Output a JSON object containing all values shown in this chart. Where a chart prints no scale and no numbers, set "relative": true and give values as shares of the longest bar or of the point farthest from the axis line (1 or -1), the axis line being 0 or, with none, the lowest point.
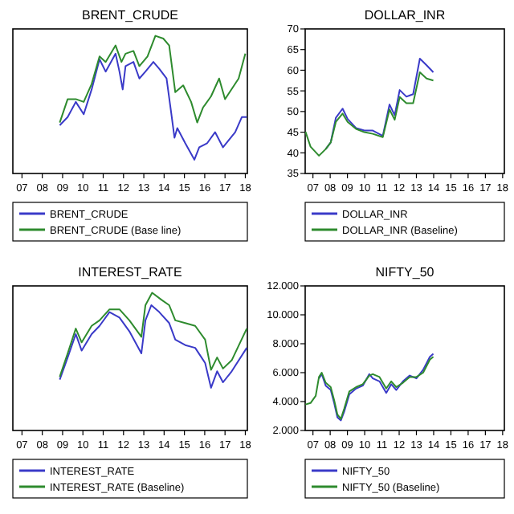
{
  "chart_data": [
    {
      "type": "line",
      "title": "BRENT_CRUDE",
      "relative": true,
      "legend": "bottom",
      "xlim": [
        2006.55,
        2018.1
      ],
      "xticks": [
        {
          "value": 2007,
          "label": "07"
        },
        {
          "value": 2008,
          "label": "08"
        },
        {
          "value": 2009,
          "label": "09"
        },
        {
          "value": 2010,
          "label": "10"
        },
        {
          "value": 2011,
          "label": "11"
        },
        {
          "value": 2012,
          "label": "12"
        },
        {
          "value": 2013,
          "label": "13"
        },
        {
          "value": 2014,
          "label": "14"
        },
        {
          "value": 2015,
          "label": "15"
        },
        {
          "value": 2016,
          "label": "16"
        },
        {
          "value": 2017,
          "label": "17"
        },
        {
          "value": 2018,
          "label": "18"
        }
      ],
      "series": [
        {
          "name": "BRENT_CRUDE",
          "color": "#3a3ac8",
          "x": [
            2008.86,
            2009.25,
            2009.65,
            2010.04,
            2010.43,
            2010.82,
            2011.12,
            2011.61,
            2011.8,
            2011.96,
            2012.1,
            2012.49,
            2012.78,
            2013.08,
            2013.47,
            2013.76,
            2014.12,
            2014.35,
            2014.51,
            2014.65,
            2015.04,
            2015.49,
            2015.73,
            2016.12,
            2016.51,
            2016.9,
            2017.5,
            2017.83,
            2018.07
          ],
          "values": [
            0.35,
            0.41,
            0.52,
            0.43,
            0.61,
            0.83,
            0.74,
            0.87,
            0.74,
            0.61,
            0.78,
            0.81,
            0.69,
            0.74,
            0.81,
            0.76,
            0.69,
            0.44,
            0.26,
            0.33,
            0.22,
            0.1,
            0.19,
            0.22,
            0.3,
            0.19,
            0.3,
            0.41,
            0.41
          ]
        },
        {
          "name": "BRENT_CRUDE (Base line)",
          "color": "#2e8b2e",
          "x": [
            2008.86,
            2009.25,
            2009.65,
            2010.04,
            2010.43,
            2010.82,
            2011.12,
            2011.61,
            2011.9,
            2012.1,
            2012.49,
            2012.78,
            2013.18,
            2013.57,
            2013.96,
            2014.25,
            2014.55,
            2014.94,
            2015.33,
            2015.63,
            2015.92,
            2016.31,
            2016.71,
            2017.0,
            2017.67,
            2018.0
          ],
          "values": [
            0.37,
            0.54,
            0.54,
            0.52,
            0.65,
            0.85,
            0.81,
            0.93,
            0.81,
            0.87,
            0.89,
            0.78,
            0.85,
            1.0,
            0.98,
            0.93,
            0.59,
            0.64,
            0.52,
            0.37,
            0.48,
            0.56,
            0.69,
            0.54,
            0.69,
            0.87
          ]
        }
      ]
    },
    {
      "type": "line",
      "title": "DOLLAR_INR",
      "legend": "bottom",
      "xlim": [
        2006.55,
        2018.1
      ],
      "xticks": [
        {
          "value": 2007,
          "label": "07"
        },
        {
          "value": 2008,
          "label": "08"
        },
        {
          "value": 2009,
          "label": "09"
        },
        {
          "value": 2010,
          "label": "10"
        },
        {
          "value": 2011,
          "label": "11"
        },
        {
          "value": 2012,
          "label": "12"
        },
        {
          "value": 2013,
          "label": "13"
        },
        {
          "value": 2014,
          "label": "14"
        },
        {
          "value": 2015,
          "label": "15"
        },
        {
          "value": 2016,
          "label": "16"
        },
        {
          "value": 2017,
          "label": "17"
        },
        {
          "value": 2018,
          "label": "18"
        }
      ],
      "ylim": [
        35,
        70
      ],
      "yticks": [
        35,
        40,
        45,
        50,
        55,
        60,
        65,
        70
      ],
      "series": [
        {
          "name": "DOLLAR_INR",
          "color": "#3a3ac8",
          "x": [
            2007.74,
            2008.03,
            2008.33,
            2008.72,
            2009.01,
            2009.5,
            2009.98,
            2010.47,
            2011.05,
            2011.44,
            2011.74,
            2012.03,
            2012.42,
            2012.81,
            2013.2,
            2013.59,
            2013.98
          ],
          "values": [
            40.9,
            42.5,
            48.5,
            50.7,
            48.2,
            46,
            45.4,
            45.4,
            44.1,
            51.7,
            49.1,
            55.2,
            53.6,
            54.2,
            62.8,
            61.2,
            59.5
          ]
        },
        {
          "name": "DOLLAR_INR (Baseline)",
          "color": "#2e8b2e",
          "x": [
            2006.57,
            2006.86,
            2007.35,
            2007.74,
            2008.03,
            2008.33,
            2008.72,
            2009.01,
            2009.5,
            2009.98,
            2010.47,
            2011.05,
            2011.44,
            2011.74,
            2012.03,
            2012.42,
            2012.81,
            2013.2,
            2013.59,
            2013.98
          ],
          "values": [
            45.1,
            41.5,
            39.3,
            40.9,
            42.5,
            47.5,
            49.5,
            47.5,
            45.8,
            45,
            44.6,
            43.8,
            50.5,
            48,
            53.5,
            52,
            52,
            59.5,
            58,
            57.5
          ]
        }
      ]
    },
    {
      "type": "line",
      "title": "INTEREST_RATE",
      "relative": true,
      "legend": "bottom",
      "xlim": [
        2006.55,
        2018.1
      ],
      "xticks": [
        {
          "value": 2007,
          "label": "07"
        },
        {
          "value": 2008,
          "label": "08"
        },
        {
          "value": 2009,
          "label": "09"
        },
        {
          "value": 2010,
          "label": "10"
        },
        {
          "value": 2011,
          "label": "11"
        },
        {
          "value": 2012,
          "label": "12"
        },
        {
          "value": 2013,
          "label": "13"
        },
        {
          "value": 2014,
          "label": "14"
        },
        {
          "value": 2015,
          "label": "15"
        },
        {
          "value": 2016,
          "label": "16"
        },
        {
          "value": 2017,
          "label": "17"
        },
        {
          "value": 2018,
          "label": "18"
        }
      ],
      "series": [
        {
          "name": "INTEREST_RATE",
          "color": "#3a3ac8",
          "x": [
            2008.86,
            2009.25,
            2009.65,
            2009.94,
            2010.43,
            2010.82,
            2011.31,
            2011.8,
            2012.29,
            2012.88,
            2013.08,
            2013.37,
            2013.76,
            2014.25,
            2014.55,
            2015.04,
            2015.53,
            2016.02,
            2016.31,
            2016.61,
            2016.9,
            2017.33,
            2018.07
          ],
          "values": [
            0.37,
            0.53,
            0.7,
            0.58,
            0.7,
            0.76,
            0.86,
            0.82,
            0.72,
            0.56,
            0.8,
            0.91,
            0.86,
            0.78,
            0.66,
            0.62,
            0.6,
            0.49,
            0.31,
            0.43,
            0.35,
            0.43,
            0.6
          ]
        },
        {
          "name": "INTEREST_RATE (Baseline)",
          "color": "#2e8b2e",
          "x": [
            2008.86,
            2009.25,
            2009.65,
            2009.94,
            2010.43,
            2010.82,
            2011.31,
            2011.8,
            2012.29,
            2012.88,
            2013.08,
            2013.41,
            2013.86,
            2014.25,
            2014.55,
            2015.04,
            2015.53,
            2016.02,
            2016.31,
            2016.61,
            2016.9,
            2017.33,
            2018.07
          ],
          "values": [
            0.39,
            0.56,
            0.74,
            0.64,
            0.76,
            0.8,
            0.88,
            0.88,
            0.8,
            0.68,
            0.91,
            1.0,
            0.95,
            0.91,
            0.8,
            0.78,
            0.76,
            0.66,
            0.44,
            0.53,
            0.45,
            0.51,
            0.74
          ]
        }
      ]
    },
    {
      "type": "line",
      "title": "NIFTY_50",
      "legend": "bottom",
      "xlim": [
        2006.55,
        2018.1
      ],
      "xticks": [
        {
          "value": 2007,
          "label": "07"
        },
        {
          "value": 2008,
          "label": "08"
        },
        {
          "value": 2009,
          "label": "09"
        },
        {
          "value": 2010,
          "label": "10"
        },
        {
          "value": 2011,
          "label": "11"
        },
        {
          "value": 2012,
          "label": "12"
        },
        {
          "value": 2013,
          "label": "13"
        },
        {
          "value": 2014,
          "label": "14"
        },
        {
          "value": 2015,
          "label": "15"
        },
        {
          "value": 2016,
          "label": "16"
        },
        {
          "value": 2017,
          "label": "17"
        },
        {
          "value": 2018,
          "label": "18"
        }
      ],
      "ylim": [
        2000,
        12000
      ],
      "yticks": [
        {
          "value": 2000,
          "label": "2.000"
        },
        {
          "value": 4000,
          "label": "4.000"
        },
        {
          "value": 6000,
          "label": "6.000"
        },
        {
          "value": 8000,
          "label": "8.000"
        },
        {
          "value": 10000,
          "label": "10.000"
        },
        {
          "value": 12000,
          "label": "12.000"
        }
      ],
      "series": [
        {
          "name": "NIFTY_50",
          "color": "#3a3ac8",
          "x": [
            2007.35,
            2007.51,
            2007.74,
            2008.03,
            2008.23,
            2008.42,
            2008.62,
            2008.81,
            2009.11,
            2009.5,
            2009.89,
            2010.27,
            2010.47,
            2010.86,
            2011.25,
            2011.54,
            2011.83,
            2012.22,
            2012.61,
            2013.0,
            2013.39,
            2013.78,
            2013.98
          ],
          "values": [
            5600,
            5900,
            5100,
            4800,
            3900,
            2900,
            2700,
            3300,
            4500,
            4900,
            5100,
            5900,
            5600,
            5400,
            4600,
            5200,
            4800,
            5400,
            5800,
            5600,
            6200,
            7100,
            7300
          ]
        },
        {
          "name": "NIFTY_50 (Baseline)",
          "color": "#2e8b2e",
          "x": [
            2006.57,
            2006.86,
            2007.16,
            2007.35,
            2007.51,
            2007.74,
            2008.03,
            2008.23,
            2008.42,
            2008.62,
            2008.81,
            2009.11,
            2009.5,
            2009.89,
            2010.27,
            2010.47,
            2010.86,
            2011.25,
            2011.54,
            2011.83,
            2012.22,
            2012.61,
            2013.0,
            2013.39,
            2013.78,
            2013.98
          ],
          "values": [
            3800,
            3900,
            4400,
            5700,
            6000,
            5300,
            5000,
            4100,
            3100,
            2800,
            3500,
            4700,
            5000,
            5200,
            5800,
            5900,
            5700,
            4900,
            5400,
            5000,
            5300,
            5700,
            5700,
            6000,
            6900,
            7100
          ]
        }
      ]
    }
  ]
}
